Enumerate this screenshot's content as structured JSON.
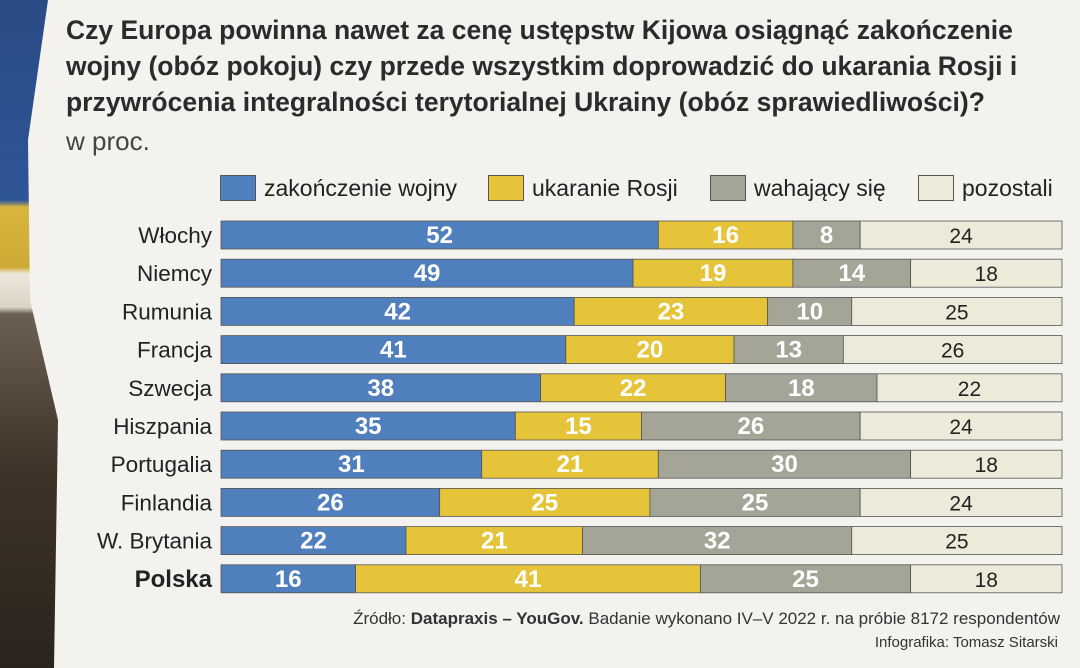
{
  "title": "Czy Europa powinna nawet za cenę ustępstw Kijowa osiągnąć zakończenie wojny (obóz pokoju) czy przede wszystkim doprowadzić do ukarania Rosji i przywrócenia integralności terytorialnej Ukrainy (obóz sprawiedliwości)?",
  "subtitle": "w proc.",
  "legend": [
    {
      "label": "zakończenie wojny",
      "color": "#4f7fbd"
    },
    {
      "label": "ukaranie Rosji",
      "color": "#e5c43a"
    },
    {
      "label": "wahający się",
      "color": "#a4a597"
    },
    {
      "label": "pozostali",
      "color": "#ecead9"
    }
  ],
  "chart_data": {
    "type": "bar",
    "orientation": "horizontal",
    "stacked": true,
    "title": "Czy Europa powinna nawet za cenę ustępstw Kijowa osiągnąć zakończenie wojny (obóz pokoju) czy przede wszystkim doprowadzić do ukarania Rosji i przywrócenia integralności terytorialnej Ukrainy (obóz sprawiedliwości)?",
    "unit": "w proc.",
    "categories": [
      "Włochy",
      "Niemcy",
      "Rumunia",
      "Francja",
      "Szwecja",
      "Hiszpania",
      "Portugalia",
      "Finlandia",
      "W. Brytania",
      "Polska"
    ],
    "highlighted_category": "Polska",
    "series": [
      {
        "name": "zakończenie wojny",
        "color": "#4f7fbd",
        "values": [
          52,
          49,
          42,
          41,
          38,
          35,
          31,
          26,
          22,
          16
        ]
      },
      {
        "name": "ukaranie Rosji",
        "color": "#e5c43a",
        "values": [
          16,
          19,
          23,
          20,
          22,
          15,
          21,
          25,
          21,
          41
        ]
      },
      {
        "name": "wahający się",
        "color": "#a4a597",
        "values": [
          8,
          14,
          10,
          13,
          18,
          26,
          30,
          25,
          32,
          25
        ]
      },
      {
        "name": "pozostali",
        "color": "#ecead9",
        "values": [
          24,
          18,
          25,
          26,
          22,
          24,
          18,
          24,
          25,
          18
        ]
      }
    ],
    "xlim": [
      0,
      100
    ],
    "legend_position": "top"
  },
  "source": {
    "prefix": "Źródło:",
    "name": "Datapraxis – YouGov.",
    "text": "Badanie wykonano IV–V 2022 r. na próbie 8172 respondentów"
  },
  "credit": "Infografika: Tomasz Sitarski"
}
